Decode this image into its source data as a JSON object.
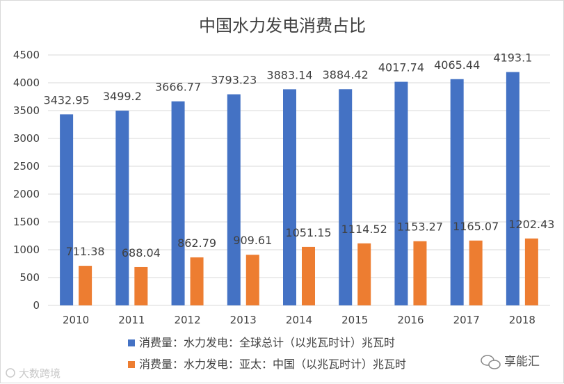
{
  "chart_data": {
    "type": "bar",
    "title": "中国水力发电消费占比",
    "categories": [
      "2010",
      "2011",
      "2012",
      "2013",
      "2014",
      "2015",
      "2016",
      "2017",
      "2018"
    ],
    "series": [
      {
        "name": "消费量：水力发电：全球总计（以兆瓦时计）兆瓦时",
        "color": "#4472c4",
        "values": [
          3432.95,
          3499.2,
          3666.77,
          3793.23,
          3883.14,
          3884.42,
          4017.74,
          4065.44,
          4193.1
        ]
      },
      {
        "name": "消费量：水力发电：亚太：中国（以兆瓦时计）兆瓦时",
        "color": "#ed7d31",
        "values": [
          711.38,
          688.04,
          862.79,
          909.61,
          1051.15,
          1114.52,
          1153.27,
          1165.07,
          1202.43
        ]
      }
    ],
    "ylim": [
      0,
      4500
    ],
    "yticks": [
      "0",
      "500",
      "1000",
      "1500",
      "2000",
      "2500",
      "3000",
      "3500",
      "4000",
      "4500"
    ],
    "grid": true,
    "legend": "bottom"
  },
  "watermarks": {
    "left": "大数跨境",
    "right": "享能汇"
  }
}
